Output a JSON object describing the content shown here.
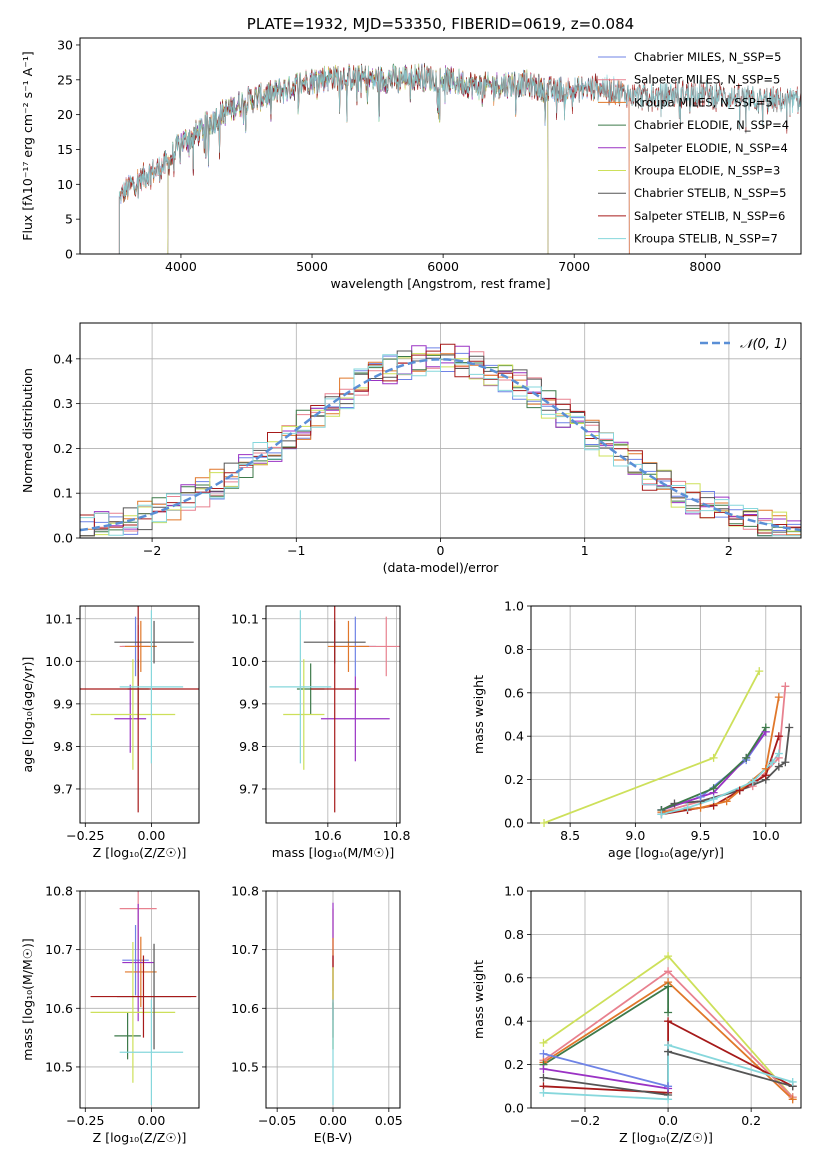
{
  "colors": {
    "chabrier_miles": "#6f83e6",
    "salpeter_miles": "#e8818f",
    "kroupa_miles": "#e0772a",
    "chabrier_elodie": "#3d7a4a",
    "salpeter_elodie": "#9a32c4",
    "kroupa_elodie": "#cde05a",
    "chabrier_stelib": "#555555",
    "salpeter_stelib": "#a61a1a",
    "kroupa_stelib": "#86d7dc",
    "gaussian": "#5a8fd6"
  },
  "chart_data": [
    {
      "id": "spectrum",
      "type": "line",
      "title": "PLATE=1932, MJD=53350, FIBERID=0619, z=0.084",
      "xlabel": "wavelength [Angstrom, rest frame]",
      "ylabel": "Flux [fλ10⁻¹⁷ erg cm⁻² s⁻¹ A⁻¹]",
      "xlim": [
        3230,
        8730
      ],
      "ylim": [
        0,
        31
      ],
      "xticks": [
        4000,
        5000,
        6000,
        7000,
        8000
      ],
      "yticks": [
        0,
        5,
        10,
        15,
        20,
        25,
        30
      ],
      "legend_position": "right",
      "continuum": {
        "x": [
          3530,
          3600,
          3700,
          3800,
          3900,
          4000,
          4100,
          4300,
          4500,
          4700,
          5000,
          5200,
          5500,
          5800,
          6000,
          6300,
          6600,
          6800,
          7000,
          7200,
          7400,
          7600,
          7800,
          8000,
          8200,
          8400
        ],
        "y": [
          8,
          9.5,
          11,
          12,
          13,
          16,
          17,
          20,
          22,
          23,
          25,
          25.5,
          25,
          25.5,
          25,
          24,
          24.5,
          23.5,
          23.5,
          24,
          23,
          22.5,
          23,
          23,
          22.5,
          22
        ]
      },
      "series": [
        {
          "name": "Chabrier MILES, N_SSP=5",
          "color_key": "chabrier_miles",
          "range": [
            3530,
            7420
          ]
        },
        {
          "name": "Salpeter MILES, N_SSP=5",
          "color_key": "salpeter_miles",
          "range": [
            3530,
            7420
          ]
        },
        {
          "name": "Kroupa MILES, N_SSP=5",
          "color_key": "kroupa_miles",
          "range": [
            3530,
            7420
          ]
        },
        {
          "name": "Chabrier ELODIE, N_SSP=4",
          "color_key": "chabrier_elodie",
          "range": [
            3900,
            6800
          ]
        },
        {
          "name": "Salpeter ELODIE, N_SSP=4",
          "color_key": "salpeter_elodie",
          "range": [
            3900,
            6800
          ]
        },
        {
          "name": "Kroupa ELODIE, N_SSP=3",
          "color_key": "kroupa_elodie",
          "range": [
            3900,
            6800
          ]
        },
        {
          "name": "Chabrier STELIB, N_SSP=5",
          "color_key": "chabrier_stelib",
          "range": [
            3530,
            8730
          ]
        },
        {
          "name": "Salpeter STELIB, N_SSP=6",
          "color_key": "salpeter_stelib",
          "range": [
            3530,
            8730
          ]
        },
        {
          "name": "Kroupa STELIB, N_SSP=7",
          "color_key": "kroupa_stelib",
          "range": [
            3530,
            8730
          ]
        }
      ]
    },
    {
      "id": "residuals",
      "type": "bar",
      "xlabel": "(data-model)/error",
      "ylabel": "Normed distribution",
      "xlim": [
        -2.5,
        2.5
      ],
      "ylim": [
        0,
        0.48
      ],
      "xticks": [
        -2,
        -1,
        0,
        1,
        2
      ],
      "yticks": [
        0.0,
        0.1,
        0.2,
        0.3,
        0.4
      ],
      "grid": true,
      "legend_position": "top-right",
      "gaussian_label": "𝒩(0, 1)",
      "bins": 50
    },
    {
      "id": "age_vs_Z",
      "type": "scatter",
      "xlabel": "Z [log₁₀(Z/Z☉)]",
      "ylabel": "age  [log₁₀(age/yr)]",
      "xlim": [
        -0.27,
        0.18
      ],
      "ylim": [
        9.62,
        10.13
      ],
      "xticks": [
        -0.25,
        0.0
      ],
      "yticks": [
        9.7,
        9.8,
        9.9,
        10.0,
        10.1
      ],
      "grid": true,
      "points": [
        {
          "color_key": "chabrier_miles",
          "x": -0.06,
          "xerr": 0.05,
          "y": 10.035,
          "yerr": 0.07
        },
        {
          "color_key": "salpeter_miles",
          "x": -0.05,
          "xerr": 0.07,
          "y": 10.035,
          "yerr": 0.05
        },
        {
          "color_key": "kroupa_miles",
          "x": -0.04,
          "xerr": 0.06,
          "y": 10.035,
          "yerr": 0.06
        },
        {
          "color_key": "chabrier_elodie",
          "x": -0.05,
          "xerr": 0.04,
          "y": 9.935,
          "yerr": 0.07
        },
        {
          "color_key": "salpeter_elodie",
          "x": -0.08,
          "xerr": 0.06,
          "y": 9.865,
          "yerr": 0.08
        },
        {
          "color_key": "kroupa_elodie",
          "x": -0.07,
          "xerr": 0.16,
          "y": 9.875,
          "yerr": 0.13
        },
        {
          "color_key": "chabrier_stelib",
          "x": 0.01,
          "xerr": 0.15,
          "y": 10.045,
          "yerr": 0.05
        },
        {
          "color_key": "salpeter_stelib",
          "x": -0.05,
          "xerr": 0.23,
          "y": 9.935,
          "yerr": 0.29
        },
        {
          "color_key": "kroupa_stelib",
          "x": 0.0,
          "xerr": 0.12,
          "y": 9.94,
          "yerr": 0.18
        }
      ]
    },
    {
      "id": "age_vs_mass",
      "type": "scatter",
      "xlabel": "mass [log₁₀(M/M☉)]",
      "ylabel": "",
      "xlim": [
        10.42,
        10.81
      ],
      "ylim": [
        9.62,
        10.13
      ],
      "xticks": [
        10.6,
        10.8
      ],
      "yticks": [
        9.7,
        9.8,
        9.9,
        10.0,
        10.1
      ],
      "grid": true,
      "points": [
        {
          "color_key": "chabrier_miles",
          "x": 10.68,
          "xerr": 0.06,
          "y": 10.035,
          "yerr": 0.07
        },
        {
          "color_key": "salpeter_miles",
          "x": 10.77,
          "xerr": 0.08,
          "y": 10.035,
          "yerr": 0.07
        },
        {
          "color_key": "kroupa_miles",
          "x": 10.66,
          "xerr": 0.06,
          "y": 10.035,
          "yerr": 0.06
        },
        {
          "color_key": "chabrier_elodie",
          "x": 10.55,
          "xerr": 0.04,
          "y": 9.935,
          "yerr": 0.06
        },
        {
          "color_key": "salpeter_elodie",
          "x": 10.68,
          "xerr": 0.1,
          "y": 9.865,
          "yerr": 0.1
        },
        {
          "color_key": "kroupa_elodie",
          "x": 10.53,
          "xerr": 0.06,
          "y": 9.875,
          "yerr": 0.13
        },
        {
          "color_key": "chabrier_stelib",
          "x": 10.62,
          "xerr": 0.09,
          "y": 10.045,
          "yerr": 0.05
        },
        {
          "color_key": "salpeter_stelib",
          "x": 10.62,
          "xerr": 0.07,
          "y": 9.935,
          "yerr": 0.29
        },
        {
          "color_key": "kroupa_stelib",
          "x": 10.52,
          "xerr": 0.09,
          "y": 9.94,
          "yerr": 0.18
        }
      ]
    },
    {
      "id": "weight_vs_age",
      "type": "line",
      "xlabel": "age  [log₁₀(age/yr)]",
      "ylabel": "mass weight",
      "xlim": [
        8.2,
        10.27
      ],
      "ylim": [
        0,
        1.0
      ],
      "xticks": [
        8.5,
        9.0,
        9.5,
        10.0
      ],
      "yticks": [
        0.0,
        0.2,
        0.4,
        0.6,
        0.8,
        1.0
      ],
      "grid": true,
      "series": [
        {
          "color_key": "kroupa_elodie",
          "x": [
            8.3,
            9.6,
            9.95
          ],
          "y": [
            0.0,
            0.3,
            0.7
          ]
        },
        {
          "color_key": "salpeter_miles",
          "x": [
            9.2,
            9.5,
            9.9,
            10.1,
            10.15
          ],
          "y": [
            0.05,
            0.1,
            0.17,
            0.3,
            0.63
          ]
        },
        {
          "color_key": "chabrier_stelib",
          "x": [
            9.2,
            9.3,
            9.5,
            9.8,
            10.0,
            10.1,
            10.15,
            10.18
          ],
          "y": [
            0.06,
            0.09,
            0.1,
            0.15,
            0.2,
            0.26,
            0.28,
            0.44
          ]
        },
        {
          "color_key": "salpeter_stelib",
          "x": [
            9.2,
            9.4,
            9.6,
            9.8,
            10.0,
            10.1
          ],
          "y": [
            0.04,
            0.06,
            0.08,
            0.15,
            0.22,
            0.4
          ]
        },
        {
          "color_key": "kroupa_miles",
          "x": [
            9.2,
            9.5,
            9.7,
            10.0,
            10.1
          ],
          "y": [
            0.05,
            0.07,
            0.1,
            0.25,
            0.58
          ]
        },
        {
          "color_key": "chabrier_miles",
          "x": [
            9.2,
            9.5,
            9.85,
            10.0
          ],
          "y": [
            0.06,
            0.12,
            0.29,
            0.42
          ]
        },
        {
          "color_key": "salpeter_elodie",
          "x": [
            9.2,
            9.6,
            9.85,
            10.0
          ],
          "y": [
            0.06,
            0.14,
            0.3,
            0.42
          ]
        },
        {
          "color_key": "chabrier_elodie",
          "x": [
            9.2,
            9.6,
            9.85,
            10.0
          ],
          "y": [
            0.06,
            0.16,
            0.3,
            0.44
          ]
        },
        {
          "color_key": "kroupa_stelib",
          "x": [
            9.2,
            9.4,
            9.6,
            9.9,
            10.05,
            10.1
          ],
          "y": [
            0.04,
            0.07,
            0.11,
            0.19,
            0.28,
            0.32
          ]
        }
      ]
    },
    {
      "id": "mass_vs_Z",
      "type": "scatter",
      "xlabel": "Z [log₁₀(Z/Z☉)]",
      "ylabel": "mass [log₁₀(M/M☉)]",
      "xlim": [
        -0.27,
        0.18
      ],
      "ylim": [
        10.43,
        10.8
      ],
      "xticks": [
        -0.25,
        0.0
      ],
      "yticks": [
        10.5,
        10.6,
        10.7,
        10.8
      ],
      "grid": true,
      "points": [
        {
          "color_key": "chabrier_miles",
          "x": -0.06,
          "xerr": 0.05,
          "y": 10.682,
          "yerr": 0.06
        },
        {
          "color_key": "salpeter_miles",
          "x": -0.05,
          "xerr": 0.07,
          "y": 10.77,
          "yerr": 0.07
        },
        {
          "color_key": "kroupa_miles",
          "x": -0.04,
          "xerr": 0.06,
          "y": 10.662,
          "yerr": 0.06
        },
        {
          "color_key": "chabrier_elodie",
          "x": -0.09,
          "xerr": 0.05,
          "y": 10.553,
          "yerr": 0.04
        },
        {
          "color_key": "salpeter_elodie",
          "x": -0.05,
          "xerr": 0.06,
          "y": 10.678,
          "yerr": 0.1
        },
        {
          "color_key": "kroupa_elodie",
          "x": -0.07,
          "xerr": 0.16,
          "y": 10.593,
          "yerr": 0.12
        },
        {
          "color_key": "chabrier_stelib",
          "x": 0.01,
          "xerr": 0.14,
          "y": 10.62,
          "yerr": 0.09
        },
        {
          "color_key": "salpeter_stelib",
          "x": -0.03,
          "xerr": 0.2,
          "y": 10.62,
          "yerr": 0.07
        },
        {
          "color_key": "kroupa_stelib",
          "x": 0.0,
          "xerr": 0.12,
          "y": 10.525,
          "yerr": 0.09
        }
      ]
    },
    {
      "id": "mass_vs_ebv",
      "type": "scatter",
      "xlabel": "E(B-V)",
      "ylabel": "",
      "xlim": [
        -0.06,
        0.06
      ],
      "ylim": [
        10.43,
        10.8
      ],
      "xticks": [
        -0.05,
        0.0,
        0.05
      ],
      "yticks": [
        10.5,
        10.6,
        10.7,
        10.8
      ],
      "grid": true,
      "points": [
        {
          "color_key": "salpeter_miles",
          "x": 0.0,
          "xerr": 0.0,
          "y": 10.7,
          "yerr": 0.07
        },
        {
          "color_key": "salpeter_elodie",
          "x": 0.0,
          "xerr": 0.0,
          "y": 10.68,
          "yerr": 0.1
        },
        {
          "color_key": "kroupa_miles",
          "x": 0.0,
          "xerr": 0.0,
          "y": 10.66,
          "yerr": 0.06
        },
        {
          "color_key": "salpeter_stelib",
          "x": 0.0,
          "xerr": 0.0,
          "y": 10.62,
          "yerr": 0.07
        },
        {
          "color_key": "kroupa_elodie",
          "x": 0.0,
          "xerr": 0.0,
          "y": 10.6,
          "yerr": 0.07
        },
        {
          "color_key": "chabrier_elodie",
          "x": 0.0,
          "xerr": 0.0,
          "y": 10.57,
          "yerr": 0.04
        },
        {
          "color_key": "kroupa_stelib",
          "x": 0.0,
          "xerr": 0.0,
          "y": 10.525,
          "yerr": 0.09
        }
      ]
    },
    {
      "id": "weight_vs_Z",
      "type": "line",
      "xlabel": "Z [log₁₀(Z/Z☉)]",
      "ylabel": "mass weight",
      "xlim": [
        -0.33,
        0.32
      ],
      "ylim": [
        0,
        1.0
      ],
      "xticks": [
        -0.2,
        0.0,
        0.2
      ],
      "yticks": [
        0.0,
        0.2,
        0.4,
        0.6,
        0.8,
        1.0
      ],
      "grid": true,
      "series": [
        {
          "color_key": "kroupa_elodie",
          "x": [
            -0.3,
            0.0,
            0.3
          ],
          "y": [
            0.3,
            0.7,
            0.05
          ]
        },
        {
          "color_key": "salpeter_miles",
          "x": [
            -0.3,
            0.0,
            0.3
          ],
          "y": [
            0.22,
            0.63,
            0.05
          ]
        },
        {
          "color_key": "kroupa_miles",
          "x": [
            -0.3,
            0.0,
            0.3
          ],
          "y": [
            0.21,
            0.58,
            0.04
          ]
        },
        {
          "color_key": "chabrier_elodie",
          "x": [
            -0.3,
            0.0,
            0.0
          ],
          "y": [
            0.2,
            0.56,
            0.44
          ]
        },
        {
          "color_key": "salpeter_stelib",
          "x": [
            -0.3,
            0.0,
            0.0,
            0.3
          ],
          "y": [
            0.1,
            0.07,
            0.4,
            0.1
          ]
        },
        {
          "color_key": "chabrier_stelib",
          "x": [
            -0.3,
            0.0,
            0.0,
            0.3
          ],
          "y": [
            0.14,
            0.06,
            0.26,
            0.1
          ]
        },
        {
          "color_key": "salpeter_elodie",
          "x": [
            -0.3,
            0.0
          ],
          "y": [
            0.18,
            0.09
          ]
        },
        {
          "color_key": "chabrier_miles",
          "x": [
            -0.3,
            0.0
          ],
          "y": [
            0.25,
            0.1
          ]
        },
        {
          "color_key": "kroupa_stelib",
          "x": [
            -0.3,
            0.0,
            0.0,
            0.3
          ],
          "y": [
            0.07,
            0.04,
            0.29,
            0.12
          ]
        }
      ]
    }
  ]
}
